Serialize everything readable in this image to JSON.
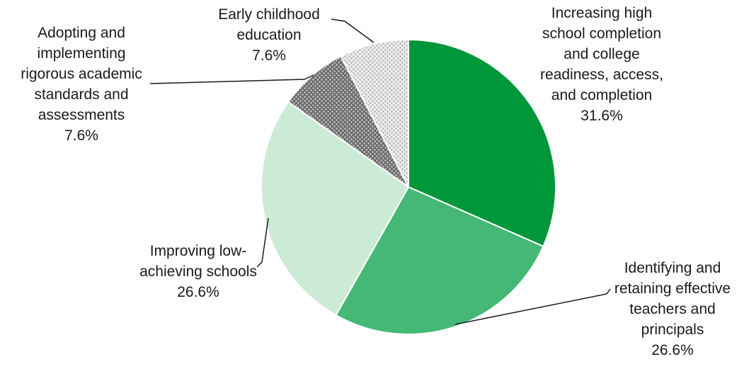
{
  "chart_data": {
    "type": "pie",
    "title": "",
    "start": "top, clockwise",
    "slices": [
      {
        "label": [
          "Increasing high",
          "school completion",
          "and college",
          "readiness, access,",
          "and completion"
        ],
        "value": 31.6,
        "value_label": "31.6%",
        "color": "#00963A",
        "fill": "solid"
      },
      {
        "label": [
          "Identifying and",
          "retaining effective",
          "teachers and",
          "principals"
        ],
        "value": 26.6,
        "value_label": "26.6%",
        "color": "#44B874",
        "fill": "solid"
      },
      {
        "label": [
          "Improving low-",
          "achieving schools"
        ],
        "value": 26.6,
        "value_label": "26.6%",
        "color": "#CCEBD6",
        "fill": "solid"
      },
      {
        "label": [
          "Adopting and",
          "implementing",
          "rigorous academic",
          "standards and",
          "assessments"
        ],
        "value": 7.6,
        "value_label": "7.6%",
        "color": "#6E6E6E",
        "fill": "dotted-dark"
      },
      {
        "label": [
          "Early childhood",
          "education"
        ],
        "value": 7.6,
        "value_label": "7.6%",
        "color": "#C4C4C4",
        "fill": "dotted-light"
      }
    ]
  }
}
